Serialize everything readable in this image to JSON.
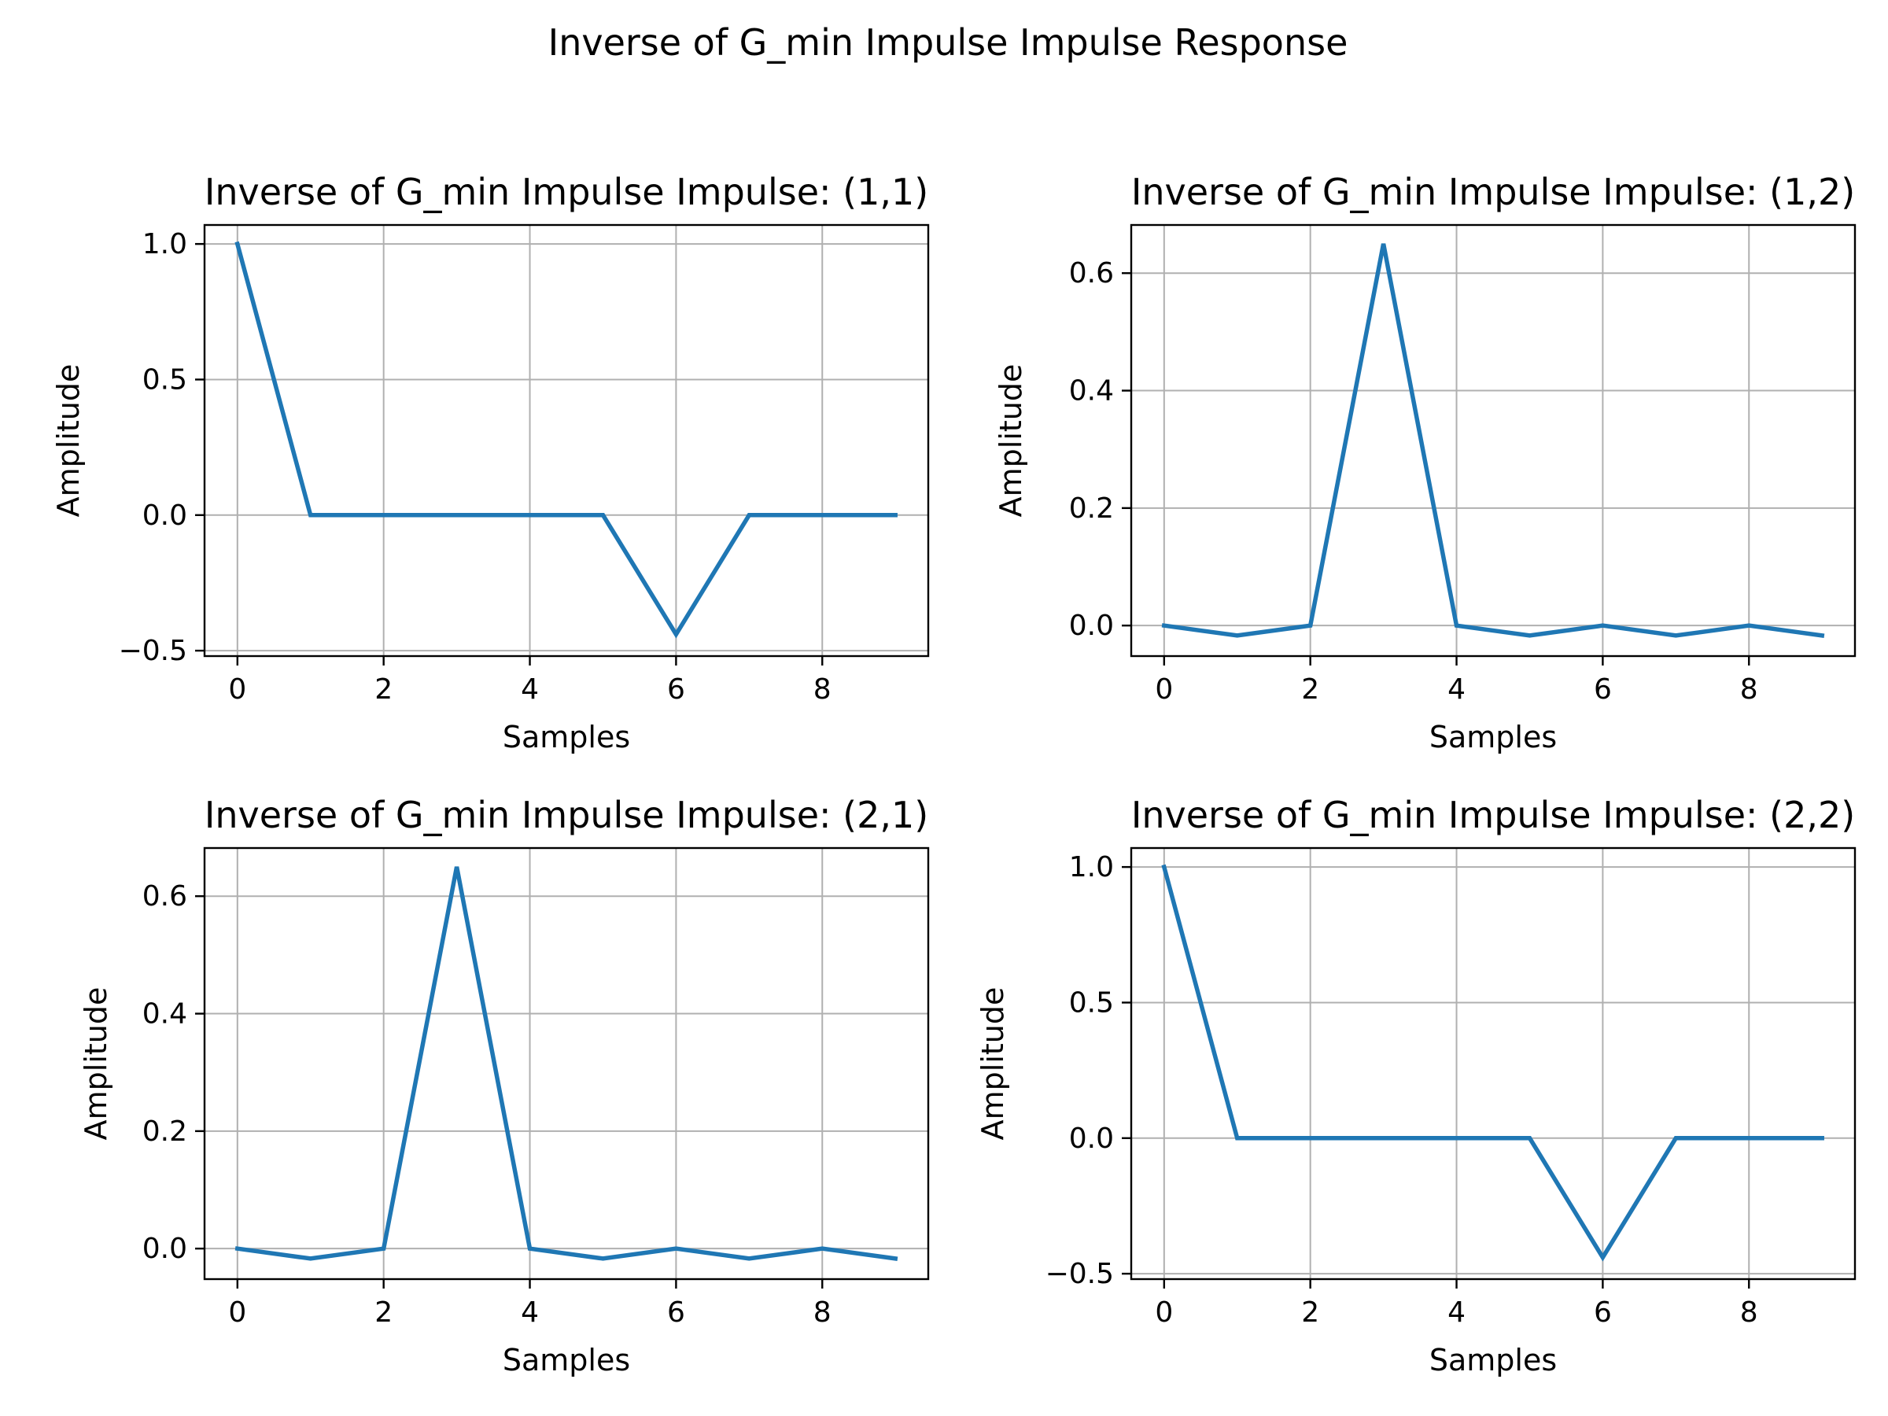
{
  "figure": {
    "title": "Inverse of G_min Impulse Impulse Response"
  },
  "colors": {
    "line": "#1f77b4",
    "grid": "#b0b0b0",
    "axes": "#000000"
  },
  "chart_data": [
    {
      "type": "line",
      "title": "Inverse of G_min Impulse Impulse: (1,1)",
      "xlabel": "Samples",
      "ylabel": "Amplitude",
      "grid": true,
      "xlim": [
        -0.45,
        9.45
      ],
      "ylim": [
        -0.52,
        1.07
      ],
      "xticks": [
        0,
        2,
        4,
        6,
        8
      ],
      "xtick_labels": [
        "0",
        "2",
        "4",
        "6",
        "8"
      ],
      "yticks": [
        -0.5,
        0.0,
        0.5,
        1.0
      ],
      "ytick_labels": [
        "−0.5",
        "0.0",
        "0.5",
        "1.0"
      ],
      "x": [
        0,
        1,
        2,
        3,
        4,
        5,
        6,
        7,
        8,
        9
      ],
      "series": [
        {
          "values": [
            1.0,
            0.0,
            0.0,
            0.0,
            0.0,
            0.0,
            -0.44,
            0.0,
            0.0,
            0.0
          ]
        }
      ]
    },
    {
      "type": "line",
      "title": "Inverse of G_min Impulse Impulse: (1,2)",
      "xlabel": "Samples",
      "ylabel": "Amplitude",
      "grid": true,
      "xlim": [
        -0.45,
        9.45
      ],
      "ylim": [
        -0.052,
        0.682
      ],
      "xticks": [
        0,
        2,
        4,
        6,
        8
      ],
      "xtick_labels": [
        "0",
        "2",
        "4",
        "6",
        "8"
      ],
      "yticks": [
        0.0,
        0.2,
        0.4,
        0.6
      ],
      "ytick_labels": [
        "0.0",
        "0.2",
        "0.4",
        "0.6"
      ],
      "x": [
        0,
        1,
        2,
        3,
        4,
        5,
        6,
        7,
        8,
        9
      ],
      "series": [
        {
          "values": [
            0.0,
            -0.017,
            0.0,
            0.65,
            0.0,
            -0.017,
            0.0,
            -0.017,
            0.0,
            -0.017
          ]
        }
      ]
    },
    {
      "type": "line",
      "title": "Inverse of G_min Impulse Impulse: (2,1)",
      "xlabel": "Samples",
      "ylabel": "Amplitude",
      "grid": true,
      "xlim": [
        -0.45,
        9.45
      ],
      "ylim": [
        -0.052,
        0.682
      ],
      "xticks": [
        0,
        2,
        4,
        6,
        8
      ],
      "xtick_labels": [
        "0",
        "2",
        "4",
        "6",
        "8"
      ],
      "yticks": [
        0.0,
        0.2,
        0.4,
        0.6
      ],
      "ytick_labels": [
        "0.0",
        "0.2",
        "0.4",
        "0.6"
      ],
      "x": [
        0,
        1,
        2,
        3,
        4,
        5,
        6,
        7,
        8,
        9
      ],
      "series": [
        {
          "values": [
            0.0,
            -0.017,
            0.0,
            0.65,
            0.0,
            -0.017,
            0.0,
            -0.017,
            0.0,
            -0.017
          ]
        }
      ]
    },
    {
      "type": "line",
      "title": "Inverse of G_min Impulse Impulse: (2,2)",
      "xlabel": "Samples",
      "ylabel": "Amplitude",
      "grid": true,
      "xlim": [
        -0.45,
        9.45
      ],
      "ylim": [
        -0.52,
        1.07
      ],
      "xticks": [
        0,
        2,
        4,
        6,
        8
      ],
      "xtick_labels": [
        "0",
        "2",
        "4",
        "6",
        "8"
      ],
      "yticks": [
        -0.5,
        0.0,
        0.5,
        1.0
      ],
      "ytick_labels": [
        "−0.5",
        "0.0",
        "0.5",
        "1.0"
      ],
      "x": [
        0,
        1,
        2,
        3,
        4,
        5,
        6,
        7,
        8,
        9
      ],
      "series": [
        {
          "values": [
            1.0,
            0.0,
            0.0,
            0.0,
            0.0,
            0.0,
            -0.44,
            0.0,
            0.0,
            0.0
          ]
        }
      ]
    }
  ]
}
